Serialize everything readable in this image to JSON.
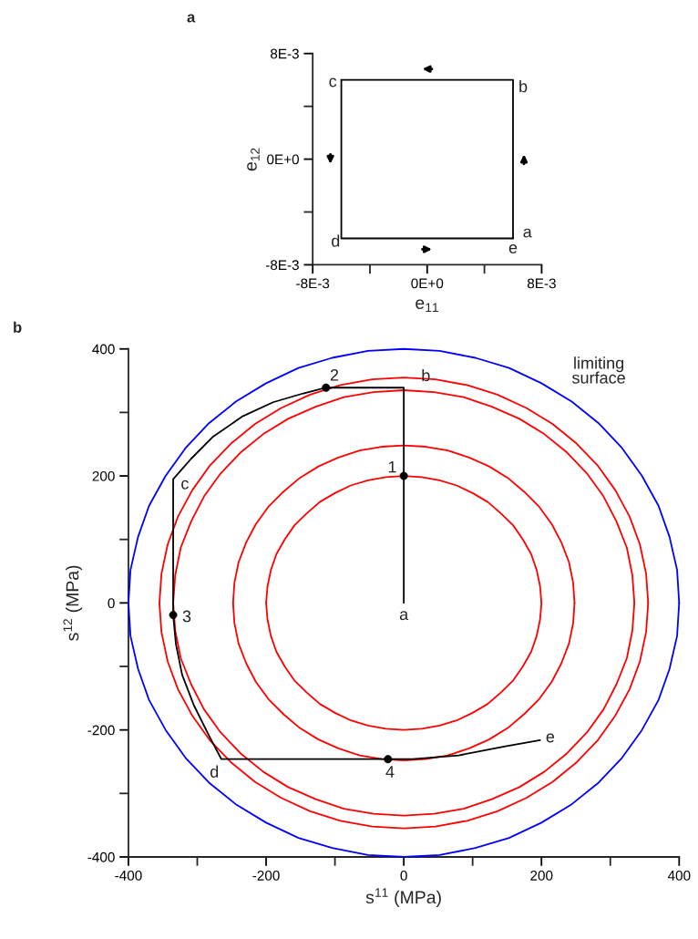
{
  "chart_data": [
    {
      "type": "line",
      "title": "a",
      "xlabel": "e$_{11}$",
      "ylabel": "e$_{12}$",
      "xlim": [
        -0.008,
        0.008
      ],
      "ylim": [
        -0.008,
        0.008
      ],
      "xticks": [
        {
          "value": -0.008,
          "label": "-8E-3"
        },
        {
          "value": -0.004,
          "label": null
        },
        {
          "value": 0,
          "label": "0E+0"
        },
        {
          "value": 0.004,
          "label": null
        },
        {
          "value": 0.008,
          "label": "8E-3"
        }
      ],
      "yticks": [
        {
          "value": -0.008,
          "label": "-8E-3"
        },
        {
          "value": -0.004,
          "label": null
        },
        {
          "value": 0,
          "label": "0E+0"
        },
        {
          "value": 0.004,
          "label": null
        },
        {
          "value": 0.008,
          "label": "8E-3"
        }
      ],
      "series": [
        {
          "color": "#000000",
          "x": [
            0.006,
            0.006,
            -0.006,
            -0.006,
            0.006
          ],
          "values": [
            -0.006,
            0.006,
            0.006,
            -0.006,
            -0.006
          ]
        }
      ],
      "annotations": [
        "a",
        "b",
        "c",
        "d",
        "e"
      ]
    },
    {
      "type": "line",
      "title": "b",
      "xlabel": "s$^{11}$ (MPa)",
      "ylabel": "s$^{12}$ (MPa)",
      "xlim": [
        -400,
        400
      ],
      "ylim": [
        -400,
        400
      ],
      "xticks": [
        -400,
        {
          "value": -300,
          "label": null
        },
        -200,
        {
          "value": -100,
          "label": null
        },
        0,
        {
          "value": 100,
          "label": null
        },
        200,
        {
          "value": 300,
          "label": null
        },
        400
      ],
      "yticks": [
        -400,
        {
          "value": -300,
          "label": null
        },
        -200,
        {
          "value": -100,
          "label": null
        },
        0,
        {
          "value": 100,
          "label": null
        },
        200,
        {
          "value": 300,
          "label": null
        },
        400
      ],
      "series": [
        {
          "color": "#ff0000",
          "x": [
            200,
            198,
            193,
            185,
            173,
            159,
            141,
            122,
            100,
            77,
            52,
            26,
            0,
            -26,
            -52,
            -77,
            -100,
            -122,
            -141,
            -159,
            -173,
            -185,
            -193,
            -198,
            -200,
            -198,
            -193,
            -185,
            -173,
            -159,
            -141,
            -122,
            -100,
            -77,
            -52,
            -26,
            0,
            26,
            52,
            77,
            100,
            122,
            141,
            159,
            173,
            185,
            193,
            198,
            200
          ],
          "values": [
            0,
            26,
            52,
            77,
            100,
            122,
            141,
            159,
            173,
            185,
            193,
            198,
            200,
            198,
            193,
            185,
            173,
            159,
            141,
            122,
            100,
            77,
            52,
            26,
            0,
            -26,
            -52,
            -77,
            -100,
            -122,
            -141,
            -159,
            -173,
            -185,
            -193,
            -198,
            -200,
            -198,
            -193,
            -185,
            -173,
            -159,
            -141,
            -122,
            -100,
            -77,
            -52,
            -26,
            0
          ]
        },
        {
          "color": "#ff0000",
          "x": [
            248,
            246,
            240,
            229,
            215,
            197,
            175,
            151,
            124,
            95,
            64,
            32,
            0,
            -32,
            -64,
            -95,
            -124,
            -151,
            -175,
            -197,
            -215,
            -229,
            -240,
            -246,
            -248,
            -246,
            -240,
            -229,
            -215,
            -197,
            -175,
            -151,
            -124,
            -95,
            -64,
            -32,
            0,
            32,
            64,
            95,
            124,
            151,
            175,
            197,
            215,
            229,
            240,
            246,
            248
          ],
          "values": [
            0,
            32,
            64,
            95,
            124,
            151,
            175,
            197,
            215,
            229,
            240,
            246,
            248,
            246,
            240,
            229,
            215,
            197,
            175,
            151,
            124,
            95,
            64,
            32,
            0,
            -32,
            -64,
            -95,
            -124,
            -151,
            -175,
            -197,
            -215,
            -229,
            -240,
            -246,
            -248,
            -246,
            -240,
            -229,
            -215,
            -197,
            -175,
            -151,
            -124,
            -95,
            -64,
            -32,
            0
          ]
        },
        {
          "color": "#ff0000",
          "x": [
            335,
            332,
            324,
            309,
            290,
            266,
            237,
            204,
            168,
            128,
            87,
            44,
            0,
            -44,
            -87,
            -128,
            -168,
            -204,
            -237,
            -266,
            -290,
            -309,
            -324,
            -332,
            -335,
            -332,
            -324,
            -309,
            -290,
            -266,
            -237,
            -204,
            -168,
            -128,
            -87,
            -44,
            0,
            44,
            87,
            128,
            168,
            204,
            237,
            266,
            290,
            309,
            324,
            332,
            335
          ],
          "values": [
            0,
            44,
            87,
            128,
            168,
            204,
            237,
            266,
            290,
            309,
            324,
            332,
            335,
            332,
            324,
            309,
            290,
            266,
            237,
            204,
            168,
            128,
            87,
            44,
            0,
            -44,
            -87,
            -128,
            -168,
            -204,
            -237,
            -266,
            -290,
            -309,
            -324,
            -332,
            -335,
            -332,
            -324,
            -309,
            -290,
            -266,
            -237,
            -204,
            -168,
            -128,
            -87,
            -44,
            0
          ]
        },
        {
          "color": "#ff0000",
          "x": [
            355,
            352,
            343,
            328,
            307,
            282,
            251,
            216,
            178,
            136,
            92,
            46,
            0,
            -46,
            -92,
            -136,
            -178,
            -216,
            -251,
            -282,
            -307,
            -328,
            -343,
            -352,
            -355,
            -352,
            -343,
            -328,
            -307,
            -282,
            -251,
            -216,
            -178,
            -136,
            -92,
            -46,
            0,
            46,
            92,
            136,
            178,
            216,
            251,
            282,
            307,
            328,
            343,
            352,
            355
          ],
          "values": [
            0,
            46,
            92,
            136,
            178,
            216,
            251,
            282,
            307,
            328,
            343,
            352,
            355,
            352,
            343,
            328,
            307,
            282,
            251,
            216,
            178,
            136,
            92,
            46,
            0,
            -46,
            -92,
            -136,
            -178,
            -216,
            -251,
            -282,
            -307,
            -328,
            -343,
            -352,
            -355,
            -352,
            -343,
            -328,
            -307,
            -282,
            -251,
            -216,
            -178,
            -136,
            -92,
            -46,
            0
          ]
        },
        {
          "color": "#0000ff",
          "x": [
            400,
            397,
            386,
            370,
            346,
            317,
            283,
            244,
            200,
            153,
            104,
            52,
            0,
            -52,
            -104,
            -153,
            -200,
            -244,
            -283,
            -317,
            -346,
            -370,
            -386,
            -397,
            -400,
            -397,
            -386,
            -370,
            -346,
            -317,
            -283,
            -244,
            -200,
            -153,
            -104,
            -52,
            0,
            52,
            104,
            153,
            200,
            244,
            283,
            317,
            346,
            370,
            386,
            397,
            400
          ],
          "values": [
            0,
            52,
            104,
            153,
            200,
            244,
            283,
            317,
            346,
            370,
            386,
            397,
            400,
            397,
            386,
            370,
            346,
            317,
            283,
            244,
            200,
            153,
            104,
            52,
            0,
            -52,
            -104,
            -153,
            -200,
            -244,
            -283,
            -317,
            -346,
            -370,
            -386,
            -397,
            -400,
            -397,
            -386,
            -370,
            -346,
            -317,
            -283,
            -244,
            -200,
            -153,
            -104,
            -52,
            0
          ]
        },
        {
          "color": "#000000",
          "x": [
            0,
            0,
            0,
            -113,
            -146,
            -190,
            -234,
            -278,
            -309,
            -335,
            -335,
            -331,
            -322,
            -305,
            -283,
            -265,
            -23,
            13,
            80,
            146,
            198
          ],
          "values": [
            0,
            200,
            339,
            339,
            330,
            316,
            294,
            261,
            227,
            195,
            -19,
            -65,
            -113,
            -161,
            -209,
            -246,
            -246,
            -246,
            -240,
            -226,
            -216
          ]
        },
        {
          "type": "scatter",
          "color": "#000000",
          "marker": "circle",
          "x": [
            0,
            -113,
            -335,
            -23
          ],
          "values": [
            200,
            339,
            -19,
            -246
          ]
        }
      ],
      "annotations": [
        "a",
        "b",
        "c",
        "d",
        "e",
        "1",
        "2",
        "3",
        "4",
        "limiting\nsurface"
      ]
    }
  ]
}
